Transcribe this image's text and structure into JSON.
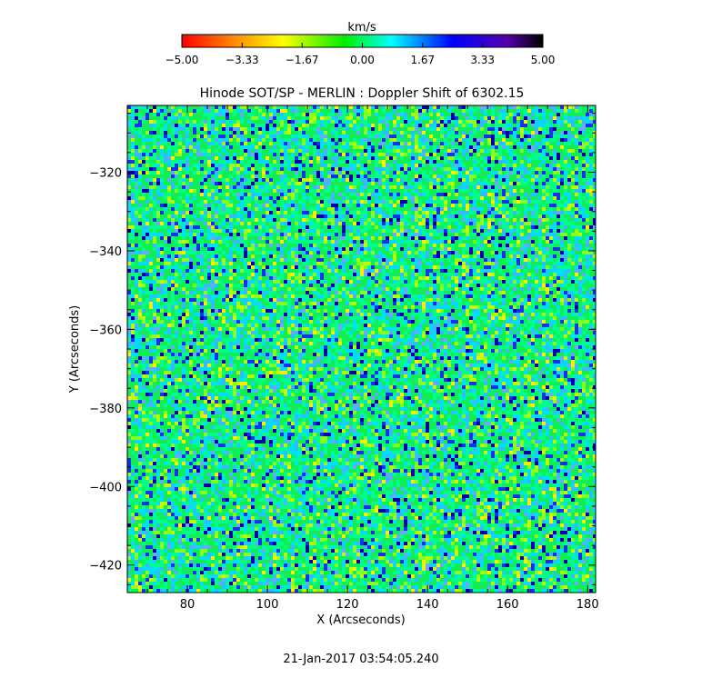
{
  "chart_data": {
    "type": "heatmap",
    "title": "Hinode SOT/SP - MERLIN : Doppler Shift of 6302.15",
    "xlabel": "X (Arcseconds)",
    "ylabel": "Y (Arcseconds)",
    "xlim": [
      65,
      182
    ],
    "ylim": [
      -427,
      -303
    ],
    "x_ticks": [
      80,
      100,
      120,
      140,
      160,
      180
    ],
    "x_tick_labels": [
      "80",
      "100",
      "120",
      "140",
      "160",
      "180"
    ],
    "y_ticks": [
      -320,
      -340,
      -360,
      -380,
      -400,
      -420
    ],
    "y_tick_labels": [
      "−320",
      "−340",
      "−360",
      "−380",
      "−400",
      "−420"
    ],
    "colorbar": {
      "label": "km/s",
      "range": [
        -5.0,
        5.0
      ],
      "ticks": [
        -5.0,
        -3.33,
        -1.67,
        0.0,
        1.67,
        3.33,
        5.0
      ],
      "tick_labels": [
        "−5.00",
        "−3.33",
        "−1.67",
        "0.00",
        "1.67",
        "3.33",
        "5.00"
      ],
      "colormap": [
        "#ff0000",
        "#ff8800",
        "#ffff00",
        "#00ee00",
        "#00ffff",
        "#0000ff",
        "#5500aa",
        "#000000"
      ]
    },
    "field_description": "Doppler velocity map, values mostly between -1.7 and +3.3 km/s",
    "timestamp": "21-Jan-2017 03:54:05.240"
  }
}
